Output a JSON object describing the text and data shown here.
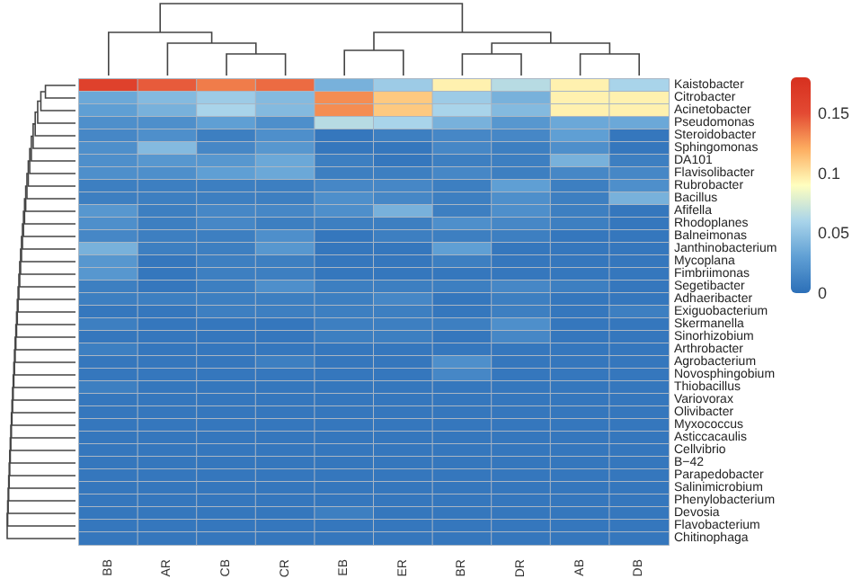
{
  "chart_data": {
    "type": "heatmap",
    "categories": [
      "BB",
      "AR",
      "CB",
      "CR",
      "EB",
      "ER",
      "BR",
      "DR",
      "AB",
      "DB"
    ],
    "y_categories": [
      "Kaistobacter",
      "Citrobacter",
      "Acinetobacter",
      "Pseudomonas",
      "Steroidobacter",
      "Sphingomonas",
      "DA101",
      "Flavisolibacter",
      "Rubrobacter",
      "Bacillus",
      "Afifella",
      "Rhodoplanes",
      "Balneimonas",
      "Janthinobacterium",
      "Mycoplana",
      "Fimbriimonas",
      "Segetibacter",
      "Adhaeribacter",
      "Exiguobacterium",
      "Skermanella",
      "Sinorhizobium",
      "Arthrobacter",
      "Agrobacterium",
      "Novosphingobium",
      "Thiobacillus",
      "Variovorax",
      "Olivibacter",
      "Myxococcus",
      "Asticcacaulis",
      "Cellvibrio",
      "B−42",
      "Parapedobacter",
      "Salinimicrobium",
      "Phenylobacterium",
      "Devosia",
      "Flavobacterium",
      "Chitinophaga"
    ],
    "cells": [
      [
        0.16,
        0.145,
        0.135,
        0.14,
        0.04,
        0.055,
        0.095,
        0.065,
        0.095,
        0.06
      ],
      [
        0.035,
        0.045,
        0.055,
        0.045,
        0.13,
        0.11,
        0.055,
        0.04,
        0.095,
        0.095
      ],
      [
        0.03,
        0.04,
        0.06,
        0.045,
        0.13,
        0.11,
        0.06,
        0.045,
        0.095,
        0.095
      ],
      [
        0.02,
        0.02,
        0.03,
        0.02,
        0.065,
        0.06,
        0.04,
        0.025,
        0.035,
        0.035
      ],
      [
        0.015,
        0.02,
        0.01,
        0.02,
        0.005,
        0.01,
        0.015,
        0.015,
        0.03,
        0.005
      ],
      [
        0.02,
        0.045,
        0.015,
        0.025,
        0.005,
        0.005,
        0.015,
        0.01,
        0.02,
        0.005
      ],
      [
        0.02,
        0.025,
        0.025,
        0.035,
        0.01,
        0.005,
        0.01,
        0.01,
        0.04,
        0.01
      ],
      [
        0.02,
        0.02,
        0.03,
        0.035,
        0.01,
        0.01,
        0.015,
        0.01,
        0.015,
        0.015
      ],
      [
        0.01,
        0.01,
        0.01,
        0.01,
        0.015,
        0.015,
        0.01,
        0.03,
        0.01,
        0.02
      ],
      [
        0.01,
        0.01,
        0.01,
        0.01,
        0.02,
        0.015,
        0.01,
        0.02,
        0.01,
        0.04
      ],
      [
        0.025,
        0.01,
        0.015,
        0.015,
        0.02,
        0.04,
        0.01,
        0.02,
        0.01,
        0.005
      ],
      [
        0.02,
        0.01,
        0.015,
        0.01,
        0.01,
        0.01,
        0.02,
        0.015,
        0.01,
        0.005
      ],
      [
        0.015,
        0.01,
        0.01,
        0.02,
        0.005,
        0.01,
        0.01,
        0.01,
        0.005,
        0.005
      ],
      [
        0.04,
        0.01,
        0.01,
        0.025,
        0.005,
        0.005,
        0.03,
        0.005,
        0.005,
        0.005
      ],
      [
        0.025,
        0.005,
        0.01,
        0.01,
        0.005,
        0.005,
        0.01,
        0.005,
        0.005,
        0.005
      ],
      [
        0.025,
        0.005,
        0.01,
        0.01,
        0.005,
        0.005,
        0.005,
        0.005,
        0.005,
        0.005
      ],
      [
        0.01,
        0.005,
        0.01,
        0.02,
        0.01,
        0.01,
        0.01,
        0.015,
        0.01,
        0.005
      ],
      [
        0.01,
        0.01,
        0.01,
        0.01,
        0.01,
        0.015,
        0.005,
        0.01,
        0.005,
        0.005
      ],
      [
        0.005,
        0.005,
        0.01,
        0.01,
        0.01,
        0.01,
        0.005,
        0.01,
        0.005,
        0.01
      ],
      [
        0.01,
        0.005,
        0.005,
        0.005,
        0.01,
        0.01,
        0.01,
        0.02,
        0.005,
        0.005
      ],
      [
        0.005,
        0.005,
        0.005,
        0.005,
        0.01,
        0.01,
        0.005,
        0.015,
        0.005,
        0.005
      ],
      [
        0.01,
        0.005,
        0.005,
        0.005,
        0.005,
        0.005,
        0.005,
        0.005,
        0.005,
        0.005
      ],
      [
        0.005,
        0.005,
        0.005,
        0.01,
        0.005,
        0.005,
        0.02,
        0.005,
        0.005,
        0.005
      ],
      [
        0.005,
        0.005,
        0.005,
        0.005,
        0.005,
        0.005,
        0.015,
        0.005,
        0.005,
        0.005
      ],
      [
        0.01,
        0.005,
        0.005,
        0.005,
        0.005,
        0.005,
        0.005,
        0.005,
        0.005,
        0.005
      ],
      [
        0.005,
        0.005,
        0.005,
        0.005,
        0.005,
        0.005,
        0.005,
        0.005,
        0.005,
        0.005
      ],
      [
        0.005,
        0.005,
        0.005,
        0.005,
        0.005,
        0.005,
        0.005,
        0.005,
        0.005,
        0.005
      ],
      [
        0.005,
        0.005,
        0.005,
        0.005,
        0.005,
        0.005,
        0.005,
        0.005,
        0.005,
        0.005
      ],
      [
        0.005,
        0.005,
        0.005,
        0.005,
        0.005,
        0.005,
        0.005,
        0.005,
        0.005,
        0.005
      ],
      [
        0.005,
        0.005,
        0.005,
        0.005,
        0.005,
        0.005,
        0.005,
        0.005,
        0.005,
        0.005
      ],
      [
        0.005,
        0.005,
        0.005,
        0.005,
        0.005,
        0.005,
        0.005,
        0.005,
        0.005,
        0.005
      ],
      [
        0.005,
        0.005,
        0.005,
        0.005,
        0.005,
        0.005,
        0.005,
        0.005,
        0.005,
        0.005
      ],
      [
        0.005,
        0.005,
        0.005,
        0.005,
        0.005,
        0.005,
        0.005,
        0.005,
        0.005,
        0.005
      ],
      [
        0.005,
        0.005,
        0.005,
        0.005,
        0.005,
        0.005,
        0.005,
        0.005,
        0.005,
        0.005
      ],
      [
        0.005,
        0.005,
        0.005,
        0.005,
        0.01,
        0.005,
        0.005,
        0.005,
        0.005,
        0.005
      ],
      [
        0.005,
        0.005,
        0.005,
        0.005,
        0.005,
        0.005,
        0.005,
        0.005,
        0.005,
        0.005
      ],
      [
        0.005,
        0.005,
        0.005,
        0.005,
        0.005,
        0.005,
        0.005,
        0.005,
        0.005,
        0.005
      ]
    ],
    "clim": [
      0,
      0.18
    ],
    "cticks": [
      0,
      0.05,
      0.1,
      0.15
    ]
  }
}
